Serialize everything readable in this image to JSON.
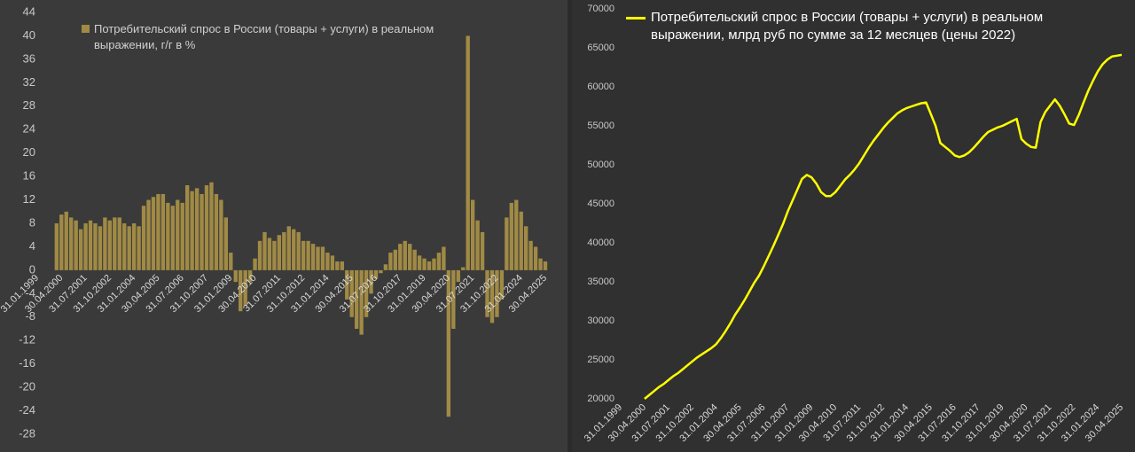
{
  "chart_data": [
    {
      "type": "bar",
      "categories": [
        "31.01.1999",
        null,
        null,
        null,
        null,
        "30.04.2000",
        null,
        null,
        null,
        null,
        "31.07.2001",
        null,
        null,
        null,
        null,
        "31.10.2002",
        null,
        null,
        null,
        null,
        "31.01.2004",
        null,
        null,
        null,
        null,
        "30.04.2005",
        null,
        null,
        null,
        null,
        "31.07.2006",
        null,
        null,
        null,
        null,
        "31.10.2007",
        null,
        null,
        null,
        null,
        "31.01.2009",
        null,
        null,
        null,
        null,
        "30.04.2010",
        null,
        null,
        null,
        null,
        "31.07.2011",
        null,
        null,
        null,
        null,
        "31.10.2012",
        null,
        null,
        null,
        null,
        "31.01.2014",
        null,
        null,
        null,
        null,
        "30.04.2015",
        null,
        null,
        null,
        null,
        "31.07.2016",
        null,
        null,
        null,
        null,
        "31.10.2017",
        null,
        null,
        null,
        null,
        "31.01.2019",
        null,
        null,
        null,
        null,
        "30.04.2020",
        null,
        null,
        null,
        null,
        "31.07.2021",
        null,
        null,
        null,
        null,
        "31.10.2022",
        null,
        null,
        null,
        null,
        "31.01.2024",
        null,
        null,
        null,
        null,
        "30.04.2025"
      ],
      "series": [
        {
          "name": "Потребительский спрос в России (товары + услуги) в реальном выражении, г/г в %",
          "color": "#a08a45",
          "values": [
            null,
            null,
            null,
            null,
            8,
            9.5,
            10,
            9,
            8.5,
            7,
            8,
            8.5,
            8,
            7.5,
            9,
            8.5,
            9,
            9,
            8,
            7.5,
            8,
            7.5,
            11,
            12,
            12.5,
            13,
            13,
            11.5,
            11,
            12,
            11.5,
            14.5,
            13.5,
            14,
            13,
            14.5,
            15,
            13,
            12,
            9,
            3,
            -2,
            -7,
            -6,
            -2,
            2,
            5,
            6.5,
            5.5,
            5,
            6,
            6.5,
            7.5,
            7,
            6.5,
            5,
            5,
            4.5,
            4,
            4,
            3,
            2.5,
            1.5,
            1.5,
            -5,
            -8,
            -10,
            -11,
            -8,
            -4,
            -1.5,
            -0.5,
            1,
            3,
            3.5,
            4.5,
            5,
            4.5,
            3.5,
            2.5,
            2,
            1.5,
            2,
            3,
            4,
            -25,
            -10,
            -2,
            0.5,
            40,
            12,
            8.5,
            6.5,
            -8,
            -9,
            -8,
            -5,
            9,
            11.5,
            12,
            10,
            7.5,
            5,
            4,
            2,
            1.5
          ]
        }
      ],
      "ylim": [
        -28,
        44
      ],
      "yticks": [
        -28,
        -24,
        -20,
        -16,
        -12,
        -8,
        -4,
        0,
        4,
        8,
        12,
        16,
        20,
        24,
        28,
        32,
        36,
        40,
        44
      ],
      "grid": false
    },
    {
      "type": "line",
      "categories": [
        "31.01.1999",
        null,
        null,
        null,
        null,
        "30.04.2000",
        null,
        null,
        null,
        null,
        "31.07.2001",
        null,
        null,
        null,
        null,
        "31.10.2002",
        null,
        null,
        null,
        null,
        "31.01.2004",
        null,
        null,
        null,
        null,
        "30.04.2005",
        null,
        null,
        null,
        null,
        "31.07.2006",
        null,
        null,
        null,
        null,
        "31.10.2007",
        null,
        null,
        null,
        null,
        "31.01.2009",
        null,
        null,
        null,
        null,
        "30.04.2010",
        null,
        null,
        null,
        null,
        "31.07.2011",
        null,
        null,
        null,
        null,
        "31.10.2012",
        null,
        null,
        null,
        null,
        "31.01.2014",
        null,
        null,
        null,
        null,
        "30.04.2015",
        null,
        null,
        null,
        null,
        "31.07.2016",
        null,
        null,
        null,
        null,
        "31.10.2017",
        null,
        null,
        null,
        null,
        "31.01.2019",
        null,
        null,
        null,
        null,
        "30.04.2020",
        null,
        null,
        null,
        null,
        "31.07.2021",
        null,
        null,
        null,
        null,
        "31.10.2022",
        null,
        null,
        null,
        null,
        "31.01.2024",
        null,
        null,
        null,
        null,
        "30.04.2025"
      ],
      "series": [
        {
          "name": "Потребительский спрос в России (товары + услуги) в реальном выражении, млрд руб по сумме за 12 месяцев (цены 2022)",
          "color": "#ffff00",
          "values": [
            null,
            null,
            null,
            null,
            null,
            20000,
            20500,
            21000,
            21500,
            21900,
            22400,
            22900,
            23300,
            23800,
            24300,
            24800,
            25300,
            25700,
            26100,
            26500,
            27000,
            27800,
            28700,
            29700,
            30800,
            31700,
            32700,
            33800,
            34900,
            35800,
            37000,
            38300,
            39600,
            41000,
            42400,
            44000,
            45400,
            46800,
            48200,
            48700,
            48400,
            47600,
            46500,
            46000,
            46000,
            46500,
            47300,
            48100,
            48700,
            49400,
            50200,
            51200,
            52200,
            53100,
            53900,
            54700,
            55400,
            56000,
            56600,
            57000,
            57300,
            57500,
            57700,
            57900,
            58000,
            56500,
            55000,
            52800,
            52300,
            51800,
            51200,
            51000,
            51200,
            51600,
            52200,
            52900,
            53600,
            54200,
            54500,
            54800,
            55000,
            55300,
            55600,
            55900,
            53300,
            52700,
            52300,
            52200,
            55500,
            56800,
            57600,
            58400,
            57600,
            56500,
            55300,
            55100,
            56400,
            58000,
            59500,
            60800,
            62000,
            62900,
            63500,
            63900,
            64000,
            64100
          ]
        }
      ],
      "ylim": [
        20000,
        70000
      ],
      "yticks": [
        20000,
        25000,
        30000,
        35000,
        40000,
        45000,
        50000,
        55000,
        60000,
        65000,
        70000
      ],
      "grid": false
    }
  ]
}
